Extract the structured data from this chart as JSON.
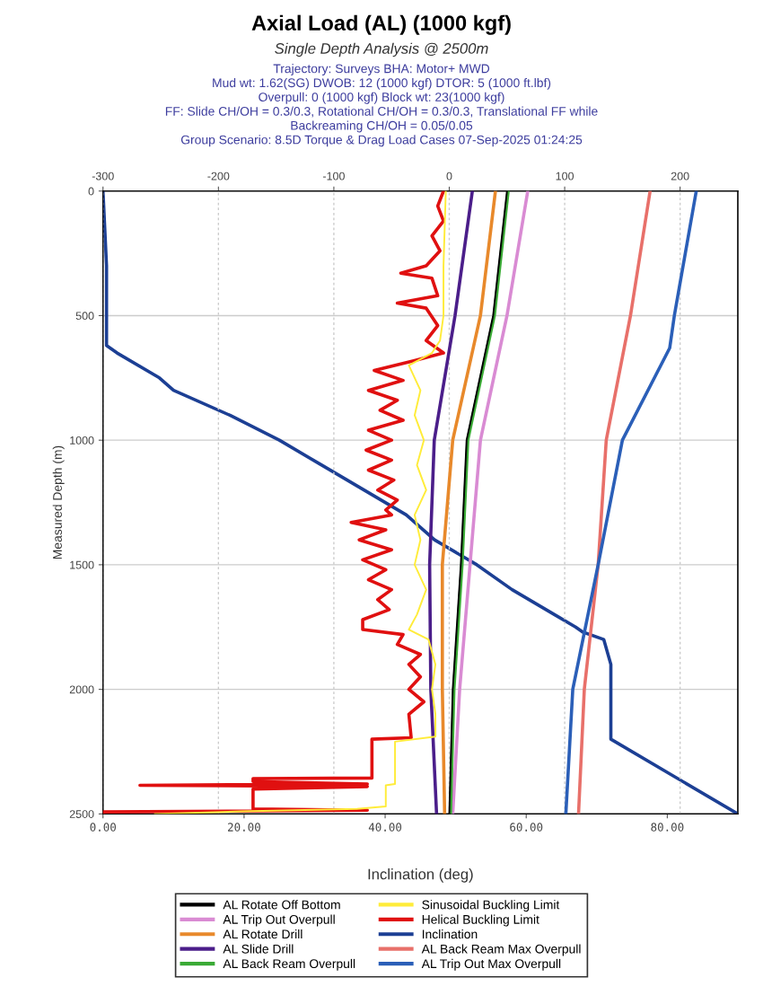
{
  "chart_data": {
    "type": "line",
    "title": "Axial Load (AL) (1000 kgf)",
    "subtitle": "Single Depth Analysis @ 2500m",
    "annotations": [
      "Trajectory: Surveys BHA: Motor+ MWD",
      "Mud wt: 1.62(SG) DWOB: 12 (1000 kgf) DTOR: 5 (1000 ft.lbf)",
      "Overpull: 0 (1000 kgf) Block wt: 23(1000 kgf)",
      "FF: Slide CH/OH = 0.3/0.3, Rotational CH/OH = 0.3/0.3, Translational FF while",
      "Backreaming CH/OH = 0.05/0.05",
      "Group Scenario: 8.5D Torque & Drag Load Cases 07-Sep-2025 01:24:25"
    ],
    "xlabel": "Inclination (deg)",
    "ylabel": "Measured Depth (m)",
    "xlim": [
      0,
      90
    ],
    "xticks": [
      {
        "value": 0,
        "label": "0.00"
      },
      {
        "value": 20,
        "label": "20.00"
      },
      {
        "value": 40,
        "label": "40.00"
      },
      {
        "value": 60,
        "label": "60.00"
      },
      {
        "value": 80,
        "label": "80.00"
      }
    ],
    "x2lim": [
      -300,
      250
    ],
    "x2ticks": [
      -300,
      -200,
      -100,
      0,
      100,
      200
    ],
    "ylim": [
      2500,
      0
    ],
    "yticks": [
      0,
      500,
      1000,
      1500,
      2000,
      2500
    ],
    "grid": true,
    "legend": "bottom",
    "marker": "none",
    "line_style": "solid",
    "series": [
      {
        "name": "AL Rotate Off Bottom",
        "color": "#000000",
        "axis": "x2",
        "x": [
          50,
          38,
          15,
          10,
          3,
          0
        ],
        "values": [
          0,
          500,
          1000,
          1500,
          2000,
          2500
        ]
      },
      {
        "name": "AL Trip Out Overpull",
        "color": "#d98bd3",
        "axis": "x2",
        "x": [
          68,
          50,
          27,
          18,
          9,
          3
        ],
        "values": [
          0,
          500,
          1000,
          1500,
          2000,
          2500
        ]
      },
      {
        "name": "AL Rotate Drill",
        "color": "#e8892b",
        "axis": "x2",
        "x": [
          40,
          27,
          3,
          -6,
          -6,
          -4
        ],
        "values": [
          0,
          500,
          1000,
          1500,
          2000,
          2500
        ]
      },
      {
        "name": "AL Slide Drill",
        "color": "#4b1e8a",
        "axis": "x2",
        "x": [
          20,
          5,
          -13,
          -17,
          -16,
          -11
        ],
        "values": [
          0,
          500,
          1000,
          1500,
          2000,
          2500
        ]
      },
      {
        "name": "AL Back Ream Overpull",
        "color": "#3aaa35",
        "axis": "x2",
        "x": [
          51,
          39,
          16,
          11,
          4,
          1
        ],
        "values": [
          0,
          500,
          1000,
          1500,
          2000,
          2500
        ]
      },
      {
        "name": "Sinusoidal Buckling Limit",
        "color": "#ffec3a",
        "axis": "x2",
        "x": [
          -3,
          -5,
          -5,
          -8,
          -15,
          -35,
          -25,
          -30,
          -22,
          -28,
          -20,
          -30,
          -25,
          -30,
          -20,
          -28,
          -35,
          -18,
          -12,
          -15,
          -12,
          -12,
          -47,
          -47,
          -55,
          -55,
          -80,
          -180,
          -255
        ],
        "values": [
          0,
          300,
          500,
          600,
          650,
          700,
          800,
          900,
          1000,
          1100,
          1200,
          1300,
          1400,
          1500,
          1600,
          1700,
          1760,
          1800,
          1900,
          2000,
          2100,
          2190,
          2210,
          2380,
          2385,
          2470,
          2480,
          2490,
          2500
        ]
      },
      {
        "name": "Helical Buckling Limit",
        "color": "#e01010",
        "axis": "x2",
        "x": [
          -5,
          -10,
          -5,
          -15,
          -8,
          -20,
          -42,
          -15,
          -10,
          -45,
          -20,
          -10,
          -20,
          -5,
          -30,
          -65,
          -40,
          -70,
          -45,
          -60,
          -40,
          -70,
          -50,
          -72,
          -50,
          -70,
          -48,
          -62,
          -45,
          -55,
          -50,
          -85,
          -55,
          -78,
          -50,
          -75,
          -55,
          -70,
          -50,
          -62,
          -52,
          -75,
          -75,
          -40,
          -45,
          -25,
          -35,
          -25,
          -35,
          -22,
          -35,
          -33,
          -67,
          -67,
          -170,
          -170,
          -71,
          -268,
          -71,
          -170,
          -170,
          -71,
          -300,
          -300
        ],
        "values": [
          0,
          60,
          120,
          180,
          240,
          300,
          330,
          350,
          420,
          450,
          470,
          540,
          600,
          650,
          680,
          720,
          760,
          800,
          840,
          880,
          920,
          960,
          1000,
          1040,
          1080,
          1120,
          1160,
          1200,
          1240,
          1280,
          1300,
          1330,
          1360,
          1400,
          1440,
          1480,
          1520,
          1560,
          1600,
          1640,
          1680,
          1720,
          1760,
          1780,
          1820,
          1860,
          1900,
          1950,
          2000,
          2050,
          2100,
          2194,
          2200,
          2356,
          2358,
          2370,
          2380,
          2385,
          2390,
          2400,
          2480,
          2485,
          2492,
          2500
        ]
      },
      {
        "name": "Inclination",
        "color": "#1c3f94",
        "x": [
          0,
          0.5,
          0.5,
          2,
          8,
          10,
          18,
          25,
          31,
          37,
          43,
          47,
          53,
          58,
          64,
          67,
          68,
          71,
          72,
          72,
          72,
          72,
          90
        ],
        "values": [
          0,
          300,
          620,
          650,
          750,
          800,
          900,
          1000,
          1100,
          1200,
          1300,
          1400,
          1500,
          1600,
          1700,
          1750,
          1770,
          1800,
          1900,
          2000,
          2100,
          2200,
          2500
        ]
      },
      {
        "name": "AL Back Ream Max Overpull",
        "color": "#e8706a",
        "axis": "x2",
        "x": [
          174,
          157,
          136,
          129,
          117,
          112
        ],
        "values": [
          0,
          500,
          1000,
          1500,
          2000,
          2500
        ]
      },
      {
        "name": "AL Trip Out Max Overpull",
        "color": "#2b5fb8",
        "axis": "x2",
        "x": [
          214,
          195,
          191,
          150,
          129,
          107,
          101
        ],
        "values": [
          0,
          500,
          630,
          1000,
          1500,
          2000,
          2500
        ]
      }
    ]
  }
}
